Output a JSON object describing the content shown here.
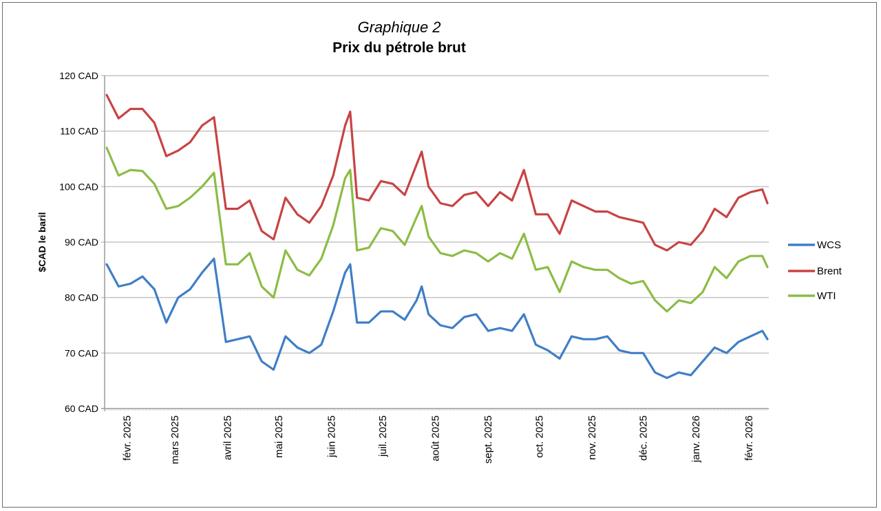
{
  "chart_data": {
    "type": "line",
    "title": "Graphique 2",
    "subtitle": "Prix du pétrole brut",
    "xlabel": "",
    "ylabel": "$CAD le baril",
    "ylim": [
      60,
      120
    ],
    "xlim": [
      "2025-01-20",
      "2026-02-12"
    ],
    "grid": true,
    "legend_position": "right",
    "y_ticks": [
      {
        "value": 60,
        "label": "60 CAD"
      },
      {
        "value": 70,
        "label": "70 CAD"
      },
      {
        "value": 80,
        "label": "80 CAD"
      },
      {
        "value": 90,
        "label": "90 CAD"
      },
      {
        "value": 100,
        "label": "100 CAD"
      },
      {
        "value": 110,
        "label": "110 CAD"
      },
      {
        "value": 120,
        "label": "120 CAD"
      }
    ],
    "x_ticks": [
      {
        "date": "2025-02-01",
        "label": "févr. 2025"
      },
      {
        "date": "2025-03-01",
        "label": "mars 2025"
      },
      {
        "date": "2025-04-01",
        "label": "avril 2025"
      },
      {
        "date": "2025-05-01",
        "label": "mai 2025"
      },
      {
        "date": "2025-06-01",
        "label": "juin 2025"
      },
      {
        "date": "2025-07-01",
        "label": "juil. 2025"
      },
      {
        "date": "2025-08-01",
        "label": "août 2025"
      },
      {
        "date": "2025-09-01",
        "label": "sept. 2025"
      },
      {
        "date": "2025-10-01",
        "label": "oct. 2025"
      },
      {
        "date": "2025-11-01",
        "label": "nov. 2025"
      },
      {
        "date": "2025-12-01",
        "label": "déc. 2025"
      },
      {
        "date": "2026-01-01",
        "label": "janv. 2026"
      },
      {
        "date": "2026-02-01",
        "label": "févr. 2026"
      }
    ],
    "x": [
      "2025-01-20",
      "2025-01-27",
      "2025-02-03",
      "2025-02-10",
      "2025-02-17",
      "2025-02-24",
      "2025-03-03",
      "2025-03-10",
      "2025-03-17",
      "2025-03-24",
      "2025-03-31",
      "2025-04-07",
      "2025-04-14",
      "2025-04-21",
      "2025-04-28",
      "2025-05-05",
      "2025-05-12",
      "2025-05-19",
      "2025-05-26",
      "2025-06-02",
      "2025-06-09",
      "2025-06-12",
      "2025-06-16",
      "2025-06-23",
      "2025-06-30",
      "2025-07-07",
      "2025-07-14",
      "2025-07-21",
      "2025-07-24",
      "2025-07-28",
      "2025-08-04",
      "2025-08-11",
      "2025-08-18",
      "2025-08-25",
      "2025-09-01",
      "2025-09-08",
      "2025-09-15",
      "2025-09-22",
      "2025-09-29",
      "2025-10-06",
      "2025-10-13",
      "2025-10-20",
      "2025-10-27",
      "2025-11-03",
      "2025-11-10",
      "2025-11-17",
      "2025-11-24",
      "2025-12-01",
      "2025-12-08",
      "2025-12-15",
      "2025-12-22",
      "2025-12-29",
      "2026-01-05",
      "2026-01-12",
      "2026-01-19",
      "2026-01-26",
      "2026-02-02",
      "2026-02-09",
      "2026-02-12"
    ],
    "series": [
      {
        "name": "WCS",
        "color": "#3f7ec6",
        "values": [
          86,
          82,
          82.5,
          83.8,
          81.5,
          75.5,
          80,
          81.5,
          84.5,
          87,
          72,
          72.5,
          73,
          68.5,
          67,
          73,
          71,
          70,
          71.5,
          77.5,
          84.5,
          86,
          75.5,
          75.5,
          77.5,
          77.5,
          76,
          79.5,
          82,
          77,
          75,
          74.5,
          76.5,
          77,
          74,
          74.5,
          74,
          77,
          71.5,
          70.5,
          69,
          73,
          72.5,
          72.5,
          73,
          70.5,
          70,
          70,
          66.5,
          65.5,
          66.5,
          66,
          68.5,
          71,
          70,
          72,
          73,
          74,
          72.5
        ]
      },
      {
        "name": "Brent",
        "color": "#c84343",
        "values": [
          116.5,
          112.3,
          114,
          114,
          111.5,
          105.5,
          106.5,
          108,
          111,
          112.5,
          96,
          96,
          97.5,
          92,
          90.5,
          98,
          95,
          93.5,
          96.5,
          102,
          111,
          113.5,
          98,
          97.5,
          101,
          100.5,
          98.5,
          104,
          106.3,
          100,
          97,
          96.5,
          98.5,
          99,
          96.5,
          99,
          97.5,
          103,
          95,
          95,
          91.5,
          97.5,
          96.5,
          95.5,
          95.5,
          94.5,
          94,
          93.5,
          89.5,
          88.5,
          90,
          89.5,
          92,
          96,
          94.5,
          98,
          99,
          99.5,
          97
        ]
      },
      {
        "name": "WTI",
        "color": "#8cbc45",
        "values": [
          107,
          102,
          103,
          102.8,
          100.5,
          96,
          96.5,
          98,
          100,
          102.5,
          86,
          86,
          88,
          82,
          80,
          88.5,
          85,
          84,
          87,
          93,
          101.5,
          103,
          88.5,
          89,
          92.5,
          92,
          89.5,
          94.5,
          96.5,
          91,
          88,
          87.5,
          88.5,
          88,
          86.5,
          88,
          87,
          91.5,
          85,
          85.5,
          81,
          86.5,
          85.5,
          85,
          85,
          83.5,
          82.5,
          83,
          79.5,
          77.5,
          79.5,
          79,
          81,
          85.5,
          83.5,
          86.5,
          87.5,
          87.5,
          85.5
        ]
      }
    ]
  }
}
